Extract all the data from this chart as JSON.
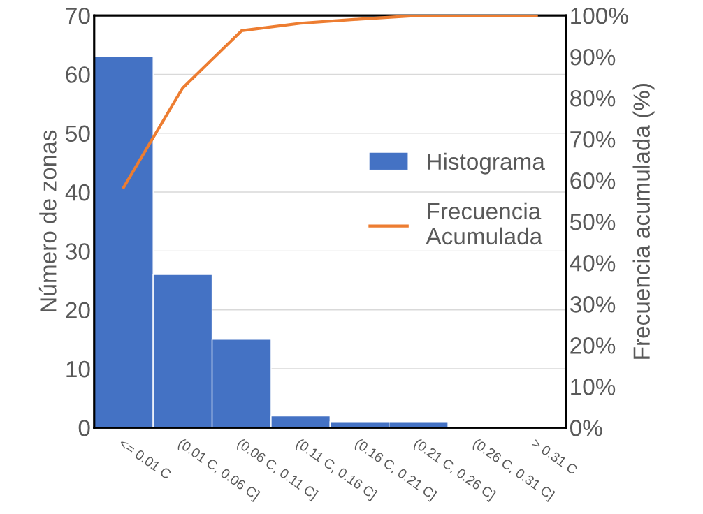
{
  "chart_data": {
    "type": "bar",
    "categories": [
      "<= 0.01 C",
      "(0.01 C, 0.06 C]",
      "(0.06 C, 0.11 C]",
      "(0.11 C, 0.16 C]",
      "(0.16 C, 0.21 C]",
      "(0.21 C, 0.26 C]",
      "(0.26 C, 0.31 C]",
      "> 0.31 C"
    ],
    "series": [
      {
        "name": "Histograma",
        "color": "#4472c4",
        "values": [
          63,
          26,
          15,
          2,
          1,
          1,
          0,
          0
        ]
      },
      {
        "name": "Frecuencia Acumulada",
        "type": "line",
        "axis": "y2",
        "color": "#ed7d31",
        "values": [
          58.3,
          82.4,
          96.3,
          98.1,
          99.1,
          100,
          100,
          100
        ]
      }
    ],
    "ylabel": "Número de zonas",
    "y2label": "Frecuencia acumulada (%)",
    "ylim": [
      0,
      70
    ],
    "yticks": [
      0,
      10,
      20,
      30,
      40,
      50,
      60,
      70
    ],
    "y2lim": [
      0,
      100
    ],
    "y2ticks": [
      {
        "value": 0,
        "label": "0%"
      },
      {
        "value": 10,
        "label": "10%"
      },
      {
        "value": 20,
        "label": "20%"
      },
      {
        "value": 30,
        "label": "30%"
      },
      {
        "value": 40,
        "label": "40%"
      },
      {
        "value": 50,
        "label": "50%"
      },
      {
        "value": 60,
        "label": "60%"
      },
      {
        "value": 70,
        "label": "70%"
      },
      {
        "value": 80,
        "label": "80%"
      },
      {
        "value": 90,
        "label": "90%"
      },
      {
        "value": 100,
        "label": "100%"
      }
    ],
    "grid": "y",
    "legend": "right",
    "marker": "none",
    "line_style": "solid"
  }
}
